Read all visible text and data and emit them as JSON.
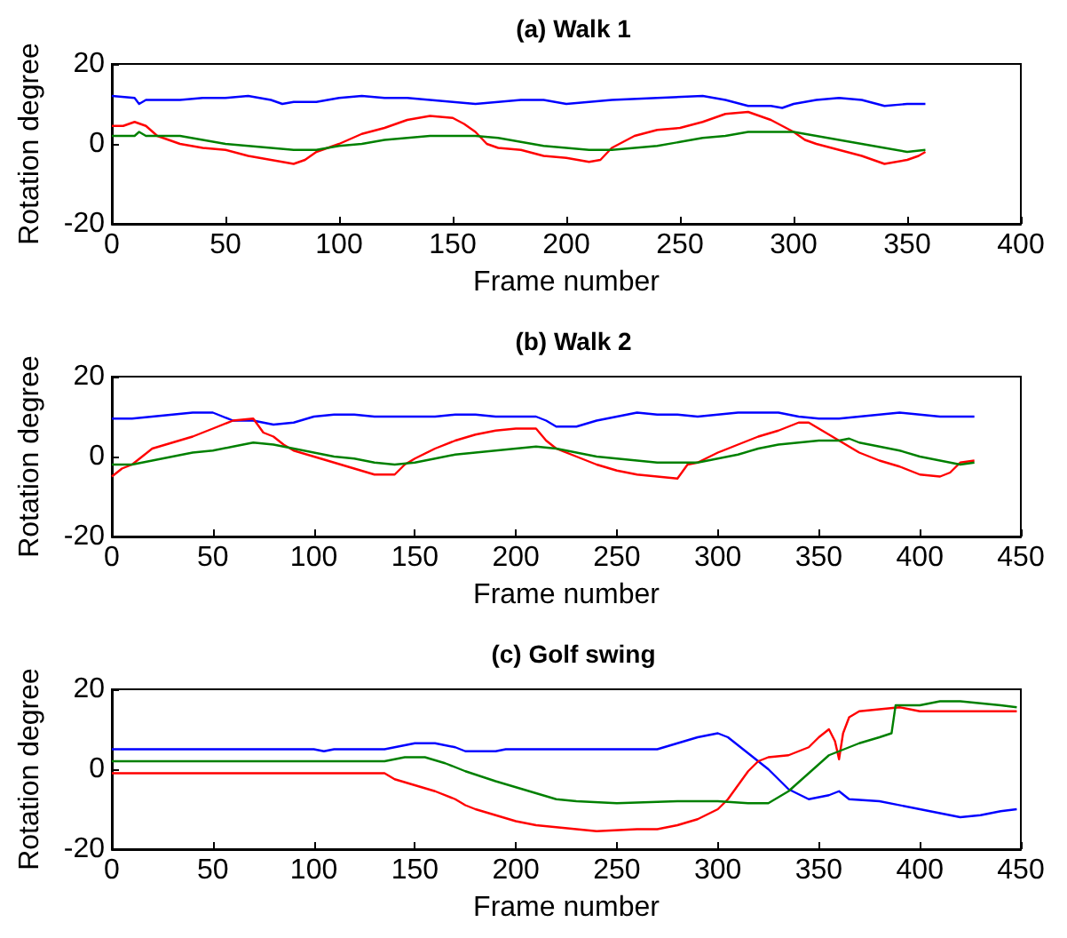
{
  "chart_data": [
    {
      "type": "line",
      "title": "(a) Walk 1",
      "xlabel": "Frame number",
      "ylabel": "Rotation degree",
      "xlim": [
        0,
        400
      ],
      "xticks": [
        0,
        50,
        100,
        150,
        200,
        250,
        300,
        350,
        400
      ],
      "ylim": [
        -20,
        20
      ],
      "yticks": [
        -20,
        0,
        20
      ],
      "series": [
        {
          "color": "#0000ff",
          "x": [
            0,
            10,
            12,
            15,
            30,
            40,
            50,
            60,
            70,
            75,
            80,
            90,
            100,
            110,
            120,
            130,
            140,
            150,
            160,
            170,
            180,
            190,
            200,
            210,
            220,
            240,
            260,
            270,
            280,
            290,
            295,
            300,
            310,
            320,
            330,
            340,
            350,
            358
          ],
          "values": [
            12,
            11.5,
            10,
            11,
            11,
            11.5,
            11.5,
            12,
            11,
            10,
            10.5,
            10.5,
            11.5,
            12,
            11.5,
            11.5,
            11,
            10.5,
            10,
            10.5,
            11,
            11,
            10,
            10.5,
            11,
            11.5,
            12,
            11,
            9.5,
            9.5,
            9,
            10,
            11,
            11.5,
            11,
            9.5,
            10,
            10
          ]
        },
        {
          "color": "#ff0000",
          "x": [
            0,
            5,
            10,
            15,
            20,
            25,
            30,
            40,
            50,
            60,
            70,
            80,
            85,
            90,
            95,
            100,
            110,
            120,
            130,
            140,
            150,
            155,
            160,
            165,
            170,
            180,
            190,
            200,
            210,
            215,
            220,
            230,
            240,
            250,
            260,
            270,
            280,
            290,
            300,
            305,
            310,
            320,
            330,
            340,
            350,
            355,
            358
          ],
          "values": [
            4.5,
            4.5,
            5.5,
            4.5,
            2,
            1,
            0,
            -1,
            -1.5,
            -3,
            -4,
            -5,
            -4,
            -2,
            -1,
            0,
            2.5,
            4,
            6,
            7,
            6.5,
            5,
            3,
            0,
            -1,
            -1.5,
            -3,
            -3.5,
            -4.5,
            -4,
            -1,
            2,
            3.5,
            4,
            5.5,
            7.5,
            8,
            6,
            3,
            1,
            0,
            -1.5,
            -3,
            -5,
            -4,
            -3,
            -2
          ]
        },
        {
          "color": "#008000",
          "x": [
            0,
            10,
            12,
            15,
            30,
            40,
            50,
            60,
            70,
            80,
            90,
            100,
            110,
            120,
            130,
            140,
            150,
            160,
            170,
            180,
            190,
            200,
            210,
            220,
            230,
            240,
            250,
            260,
            270,
            280,
            290,
            300,
            310,
            320,
            330,
            340,
            350,
            358
          ],
          "values": [
            2,
            2,
            3,
            2,
            2,
            1,
            0,
            -0.5,
            -1,
            -1.5,
            -1.5,
            -0.5,
            0,
            1,
            1.5,
            2,
            2,
            2,
            1.5,
            0.5,
            -0.5,
            -1,
            -1.5,
            -1.5,
            -1,
            -0.5,
            0.5,
            1.5,
            2,
            3,
            3,
            3,
            2,
            1,
            0,
            -1,
            -2,
            -1.5
          ]
        }
      ]
    },
    {
      "type": "line",
      "title": "(b) Walk 2",
      "xlabel": "Frame number",
      "ylabel": "Rotation degree",
      "xlim": [
        0,
        450
      ],
      "xticks": [
        0,
        50,
        100,
        150,
        200,
        250,
        300,
        350,
        400,
        450
      ],
      "ylim": [
        -20,
        20
      ],
      "yticks": [
        -20,
        0,
        20
      ],
      "series": [
        {
          "color": "#0000ff",
          "x": [
            0,
            10,
            20,
            30,
            40,
            50,
            60,
            70,
            80,
            90,
            100,
            110,
            120,
            130,
            140,
            150,
            160,
            170,
            180,
            190,
            200,
            210,
            215,
            220,
            230,
            240,
            250,
            260,
            270,
            280,
            290,
            300,
            310,
            320,
            330,
            340,
            350,
            360,
            370,
            380,
            390,
            400,
            410,
            420,
            427
          ],
          "values": [
            9.5,
            9.5,
            10,
            10.5,
            11,
            11,
            9,
            9,
            8,
            8.5,
            10,
            10.5,
            10.5,
            10,
            10,
            10,
            10,
            10.5,
            10.5,
            10,
            10,
            10,
            9,
            7.5,
            7.5,
            9,
            10,
            11,
            10.5,
            10.5,
            10,
            10.5,
            11,
            11,
            11,
            10,
            9.5,
            9.5,
            10,
            10.5,
            11,
            10.5,
            10,
            10,
            10
          ]
        },
        {
          "color": "#ff0000",
          "x": [
            0,
            5,
            10,
            15,
            20,
            30,
            40,
            50,
            60,
            70,
            75,
            80,
            85,
            90,
            100,
            110,
            120,
            130,
            140,
            145,
            150,
            160,
            170,
            180,
            190,
            200,
            210,
            215,
            220,
            230,
            240,
            250,
            260,
            270,
            280,
            285,
            290,
            300,
            310,
            320,
            330,
            340,
            345,
            350,
            360,
            370,
            380,
            390,
            400,
            410,
            415,
            420,
            427
          ],
          "values": [
            -5,
            -3,
            -2,
            0,
            2,
            3.5,
            5,
            7,
            9,
            9.5,
            6,
            5,
            3,
            1.5,
            0,
            -1.5,
            -3,
            -4.5,
            -4.5,
            -2,
            -0.5,
            2,
            4,
            5.5,
            6.5,
            7,
            7,
            4,
            2,
            0,
            -2,
            -3.5,
            -4.5,
            -5,
            -5.5,
            -2,
            -1.5,
            1,
            3,
            5,
            6.5,
            8.5,
            8.5,
            7,
            4,
            1,
            -1,
            -2.5,
            -4.5,
            -5,
            -4,
            -1.5,
            -1
          ]
        },
        {
          "color": "#008000",
          "x": [
            0,
            10,
            20,
            30,
            40,
            50,
            60,
            70,
            80,
            90,
            100,
            110,
            120,
            130,
            140,
            150,
            160,
            170,
            180,
            190,
            200,
            210,
            220,
            230,
            240,
            250,
            260,
            270,
            280,
            290,
            300,
            310,
            320,
            330,
            340,
            350,
            360,
            365,
            370,
            380,
            390,
            400,
            410,
            420,
            427
          ],
          "values": [
            -2,
            -2,
            -1,
            0,
            1,
            1.5,
            2.5,
            3.5,
            3,
            2,
            1,
            0,
            -0.5,
            -1.5,
            -2,
            -1.5,
            -0.5,
            0.5,
            1,
            1.5,
            2,
            2.5,
            2,
            1,
            0,
            -0.5,
            -1,
            -1.5,
            -1.5,
            -1.5,
            -0.5,
            0.5,
            2,
            3,
            3.5,
            4,
            4,
            4.5,
            3.5,
            2.5,
            1.5,
            0,
            -1,
            -2,
            -1.5
          ]
        }
      ]
    },
    {
      "type": "line",
      "title": "(c) Golf swing",
      "xlabel": "Frame number",
      "ylabel": "Rotation degree",
      "xlim": [
        0,
        450
      ],
      "xticks": [
        0,
        50,
        100,
        150,
        200,
        250,
        300,
        350,
        400,
        450
      ],
      "ylim": [
        -20,
        20
      ],
      "yticks": [
        -20,
        0,
        20
      ],
      "series": [
        {
          "color": "#0000ff",
          "x": [
            0,
            100,
            105,
            110,
            135,
            140,
            150,
            160,
            170,
            175,
            190,
            195,
            200,
            220,
            230,
            250,
            270,
            280,
            290,
            300,
            305,
            315,
            325,
            335,
            345,
            355,
            360,
            365,
            380,
            400,
            410,
            420,
            430,
            440,
            448
          ],
          "values": [
            5,
            5,
            4.5,
            5,
            5,
            5.5,
            6.5,
            6.5,
            5.5,
            4.5,
            4.5,
            5,
            5,
            5,
            5,
            5,
            5,
            6.5,
            8,
            9,
            8,
            4,
            0,
            -5,
            -7.5,
            -6.5,
            -5.5,
            -7.5,
            -8,
            -10,
            -11,
            -12,
            -11.5,
            -10.5,
            -10
          ]
        },
        {
          "color": "#ff0000",
          "x": [
            0,
            135,
            140,
            150,
            160,
            170,
            175,
            180,
            190,
            200,
            210,
            220,
            240,
            260,
            270,
            280,
            290,
            300,
            305,
            310,
            315,
            320,
            325,
            335,
            340,
            345,
            350,
            355,
            358,
            360,
            362,
            365,
            370,
            380,
            390,
            400,
            420,
            448
          ],
          "values": [
            -1,
            -1,
            -2.5,
            -4,
            -5.5,
            -7.5,
            -9,
            -10,
            -11.5,
            -13,
            -14,
            -14.5,
            -15.5,
            -15,
            -15,
            -14,
            -12.5,
            -10,
            -7.5,
            -4,
            -0.5,
            2,
            3,
            3.5,
            4.5,
            5.5,
            8,
            10,
            7,
            2.5,
            9,
            13,
            14.5,
            15,
            15.5,
            14.5,
            14.5,
            14.5
          ]
        },
        {
          "color": "#008000",
          "x": [
            0,
            135,
            145,
            155,
            165,
            175,
            190,
            200,
            210,
            220,
            230,
            250,
            280,
            300,
            315,
            325,
            335,
            345,
            355,
            360,
            370,
            380,
            386,
            388,
            400,
            410,
            420,
            430,
            440,
            448
          ],
          "values": [
            2,
            2,
            3,
            3,
            1.5,
            -0.5,
            -3,
            -4.5,
            -6,
            -7.5,
            -8,
            -8.5,
            -8,
            -8,
            -8.5,
            -8.5,
            -5.5,
            -1,
            3.5,
            4.5,
            6.5,
            8,
            9,
            16,
            16,
            17,
            17,
            16.5,
            16,
            15.5
          ]
        }
      ]
    }
  ]
}
